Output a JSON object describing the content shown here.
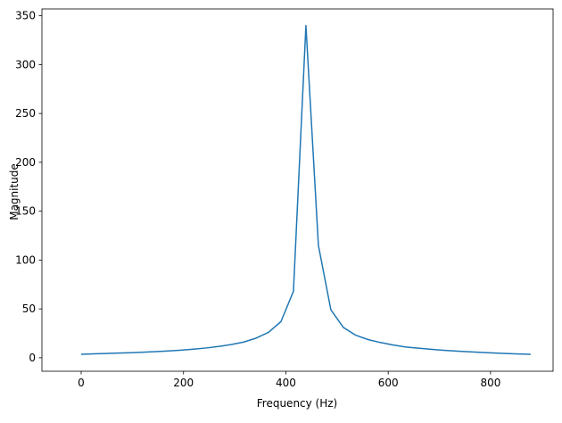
{
  "chart_data": {
    "type": "line",
    "x_label": "Frequency (Hz)",
    "y_label": "Magnitude",
    "x": [
      0,
      24.4,
      48.8,
      73.2,
      97.6,
      122,
      146.4,
      170.8,
      195.2,
      219.6,
      244,
      268.4,
      292.8,
      317.2,
      341.6,
      366,
      390.4,
      414.8,
      439.2,
      463.6,
      488,
      512.4,
      536.8,
      561.2,
      585.6,
      610,
      634.4,
      658.8,
      683.2,
      707.6,
      732,
      756.4,
      780.8,
      805.2,
      829.6,
      854,
      878.4
    ],
    "series": [
      {
        "color": "#1f77b4",
        "values": [
          3.6,
          4.0,
          4.4,
          4.8,
          5.2,
          5.7,
          6.3,
          7,
          7.8,
          8.8,
          10,
          11.5,
          13.5,
          16,
          20,
          26,
          37,
          68,
          340,
          115,
          49,
          31,
          23,
          18.5,
          15.5,
          13,
          11,
          9.8,
          8.7,
          7.7,
          6.9,
          6.2,
          5.5,
          4.9,
          4.4,
          3.9,
          3.5
        ]
      }
    ],
    "xlim": [
      -76.7,
      922.2
    ],
    "ylim": [
      -13.8,
      357
    ],
    "xticks": [
      0,
      200,
      400,
      600,
      800
    ],
    "yticks": [
      0,
      50,
      100,
      150,
      200,
      250,
      300,
      350
    ],
    "grid": false
  }
}
